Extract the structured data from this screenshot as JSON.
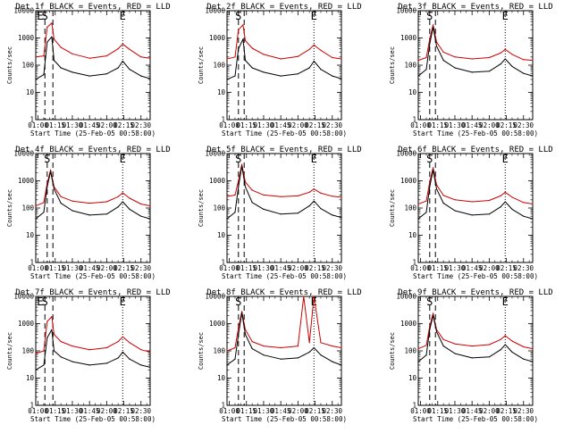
{
  "figure": {
    "x_ticks": [
      "01:00",
      "01:15",
      "01:30",
      "01:45",
      "02:00",
      "02:15",
      "02:30"
    ],
    "x_label": "Start Time (25-Feb-05 00:58:00)",
    "y_label": "Counts/sec",
    "y_ticks": [
      "1",
      "10",
      "100",
      "1000",
      "10000"
    ]
  },
  "chart_data": [
    {
      "type": "line",
      "title": "Det_1f BLACK = Events, RED = LLD",
      "detector": "1f",
      "marker_labels": [
        "E",
        "S",
        "E"
      ],
      "xlim": [
        "00:58",
        "02:38"
      ],
      "ylim": [
        1,
        10000
      ],
      "log_y": true,
      "x": [
        "00:58",
        "01:05",
        "01:08",
        "01:12",
        "01:14",
        "01:20",
        "01:30",
        "01:45",
        "02:00",
        "02:10",
        "02:14",
        "02:20",
        "02:30",
        "02:38"
      ],
      "series": [
        {
          "name": "Events",
          "color": "#000000",
          "values": [
            30,
            45,
            700,
            1100,
            150,
            80,
            55,
            40,
            48,
            80,
            140,
            70,
            40,
            32
          ]
        },
        {
          "name": "LLD",
          "color": "#cc0000",
          "values": [
            200,
            220,
            2500,
            3500,
            900,
            450,
            260,
            180,
            220,
            400,
            600,
            380,
            200,
            180
          ]
        }
      ],
      "dashed_markers": [
        "01:06",
        "01:13"
      ],
      "dotted_markers": [
        "02:14"
      ]
    },
    {
      "type": "line",
      "title": "Det_2f BLACK = Events, RED = LLD",
      "detector": "2f",
      "marker_labels": [
        "S",
        "E"
      ],
      "xlim": [
        "00:58",
        "02:38"
      ],
      "ylim": [
        1,
        10000
      ],
      "log_y": true,
      "x": [
        "00:58",
        "01:05",
        "01:08",
        "01:12",
        "01:14",
        "01:20",
        "01:30",
        "01:45",
        "02:00",
        "02:10",
        "02:14",
        "02:20",
        "02:30",
        "02:38"
      ],
      "series": [
        {
          "name": "Events",
          "color": "#000000",
          "values": [
            30,
            40,
            400,
            900,
            150,
            80,
            55,
            40,
            48,
            80,
            140,
            70,
            40,
            32
          ]
        },
        {
          "name": "LLD",
          "color": "#cc0000",
          "values": [
            170,
            200,
            2000,
            3000,
            800,
            420,
            250,
            170,
            210,
            380,
            550,
            350,
            190,
            170
          ]
        }
      ],
      "dashed_markers": [
        "01:08",
        "01:13"
      ],
      "dotted_markers": [
        "02:14"
      ]
    },
    {
      "type": "line",
      "title": "Det_3f BLACK = Events, RED = LLD",
      "detector": "3f",
      "marker_labels": [
        "S",
        "E"
      ],
      "xlim": [
        "00:58",
        "02:38"
      ],
      "ylim": [
        1,
        10000
      ],
      "log_y": true,
      "x": [
        "00:58",
        "01:05",
        "01:08",
        "01:11",
        "01:14",
        "01:20",
        "01:30",
        "01:45",
        "02:00",
        "02:10",
        "02:14",
        "02:20",
        "02:30",
        "02:38"
      ],
      "series": [
        {
          "name": "Events",
          "color": "#000000",
          "values": [
            40,
            70,
            600,
            2500,
            500,
            150,
            80,
            55,
            60,
            110,
            170,
            90,
            50,
            40
          ]
        },
        {
          "name": "LLD",
          "color": "#cc0000",
          "values": [
            150,
            190,
            900,
            3000,
            700,
            300,
            200,
            170,
            190,
            280,
            380,
            250,
            160,
            150
          ]
        }
      ],
      "dashed_markers": [
        "01:08",
        "01:13"
      ],
      "dotted_markers": [
        "02:14"
      ]
    },
    {
      "type": "line",
      "title": "Det_4f BLACK = Events, RED = LLD",
      "detector": "4f",
      "marker_labels": [
        "S",
        "E"
      ],
      "xlim": [
        "00:58",
        "02:38"
      ],
      "ylim": [
        1,
        10000
      ],
      "log_y": true,
      "x": [
        "00:58",
        "01:05",
        "01:08",
        "01:11",
        "01:14",
        "01:20",
        "01:30",
        "01:45",
        "02:00",
        "02:10",
        "02:14",
        "02:20",
        "02:30",
        "02:38"
      ],
      "series": [
        {
          "name": "Events",
          "color": "#000000",
          "values": [
            40,
            70,
            600,
            2200,
            500,
            150,
            80,
            55,
            60,
            110,
            170,
            90,
            50,
            40
          ]
        },
        {
          "name": "LLD",
          "color": "#cc0000",
          "values": [
            120,
            160,
            800,
            2500,
            600,
            260,
            180,
            150,
            170,
            260,
            360,
            230,
            140,
            120
          ]
        }
      ],
      "dashed_markers": [
        "01:08",
        "01:13"
      ],
      "dotted_markers": [
        "02:14"
      ]
    },
    {
      "type": "line",
      "title": "Det_5f BLACK = Events, RED = LLD",
      "detector": "5f",
      "marker_labels": [
        "S",
        "E"
      ],
      "xlim": [
        "00:58",
        "02:38"
      ],
      "ylim": [
        1,
        10000
      ],
      "log_y": true,
      "x": [
        "00:58",
        "01:05",
        "01:08",
        "01:11",
        "01:14",
        "01:20",
        "01:30",
        "01:45",
        "02:00",
        "02:10",
        "02:14",
        "02:20",
        "02:30",
        "02:38"
      ],
      "series": [
        {
          "name": "Events",
          "color": "#000000",
          "values": [
            40,
            70,
            600,
            3500,
            600,
            160,
            90,
            60,
            65,
            120,
            180,
            95,
            55,
            45
          ]
        },
        {
          "name": "LLD",
          "color": "#cc0000",
          "values": [
            260,
            300,
            1000,
            4000,
            900,
            450,
            300,
            260,
            280,
            380,
            500,
            350,
            270,
            250
          ]
        }
      ],
      "dashed_markers": [
        "01:08",
        "01:13"
      ],
      "dotted_markers": [
        "02:14"
      ]
    },
    {
      "type": "line",
      "title": "Det_6f BLACK = Events, RED = LLD",
      "detector": "6f",
      "marker_labels": [
        "S",
        "E"
      ],
      "xlim": [
        "00:58",
        "02:38"
      ],
      "ylim": [
        1,
        10000
      ],
      "log_y": true,
      "x": [
        "00:58",
        "01:05",
        "01:08",
        "01:11",
        "01:14",
        "01:20",
        "01:30",
        "01:45",
        "02:00",
        "02:10",
        "02:14",
        "02:20",
        "02:30",
        "02:38"
      ],
      "series": [
        {
          "name": "Events",
          "color": "#000000",
          "values": [
            40,
            70,
            600,
            2500,
            500,
            150,
            80,
            55,
            60,
            110,
            170,
            90,
            50,
            40
          ]
        },
        {
          "name": "LLD",
          "color": "#cc0000",
          "values": [
            140,
            180,
            900,
            3000,
            700,
            290,
            200,
            170,
            190,
            280,
            380,
            250,
            160,
            140
          ]
        }
      ],
      "dashed_markers": [
        "01:08",
        "01:13"
      ],
      "dotted_markers": [
        "02:14"
      ]
    },
    {
      "type": "line",
      "title": "Det_7f BLACK = Events, RED = LLD",
      "detector": "7f",
      "marker_labels": [
        "E",
        "S",
        "E"
      ],
      "xlim": [
        "00:58",
        "02:38"
      ],
      "ylim": [
        1,
        10000
      ],
      "log_y": true,
      "x": [
        "00:58",
        "01:05",
        "01:08",
        "01:12",
        "01:14",
        "01:20",
        "01:30",
        "01:45",
        "02:00",
        "02:10",
        "02:14",
        "02:20",
        "02:30",
        "02:38"
      ],
      "series": [
        {
          "name": "Events",
          "color": "#000000",
          "values": [
            20,
            30,
            300,
            600,
            100,
            60,
            40,
            30,
            35,
            55,
            90,
            50,
            30,
            25
          ]
        },
        {
          "name": "LLD",
          "color": "#cc0000",
          "values": [
            80,
            100,
            1200,
            1800,
            400,
            220,
            150,
            110,
            130,
            220,
            330,
            200,
            110,
            90
          ]
        }
      ],
      "dashed_markers": [
        "01:06",
        "01:13"
      ],
      "dotted_markers": [
        "02:14"
      ]
    },
    {
      "type": "line",
      "title": "Det_8f BLACK = Events, RED = LLD",
      "detector": "8f",
      "marker_labels": [
        "S",
        "E"
      ],
      "xlim": [
        "00:58",
        "02:38"
      ],
      "ylim": [
        1,
        10000
      ],
      "log_y": true,
      "x": [
        "00:58",
        "01:05",
        "01:08",
        "01:11",
        "01:14",
        "01:20",
        "01:30",
        "01:45",
        "02:00",
        "02:05",
        "02:10",
        "02:14",
        "02:20",
        "02:30",
        "02:38"
      ],
      "series": [
        {
          "name": "Events",
          "color": "#000000",
          "values": [
            30,
            50,
            400,
            2500,
            400,
            120,
            70,
            50,
            55,
            70,
            90,
            130,
            70,
            40,
            30
          ]
        },
        {
          "name": "LLD",
          "color": "#cc0000",
          "values": [
            100,
            130,
            700,
            2800,
            600,
            220,
            150,
            130,
            150,
            10000,
            200,
            10000,
            200,
            150,
            130
          ]
        }
      ],
      "dashed_markers": [
        "01:08",
        "01:13"
      ],
      "dotted_markers": [
        "02:14"
      ]
    },
    {
      "type": "line",
      "title": "Det_9f BLACK = Events, RED = LLD",
      "detector": "9f",
      "marker_labels": [
        "S",
        "E"
      ],
      "xlim": [
        "00:58",
        "02:38"
      ],
      "ylim": [
        1,
        10000
      ],
      "log_y": true,
      "x": [
        "00:58",
        "01:05",
        "01:08",
        "01:11",
        "01:14",
        "01:20",
        "01:30",
        "01:45",
        "02:00",
        "02:10",
        "02:14",
        "02:20",
        "02:30",
        "02:38"
      ],
      "series": [
        {
          "name": "Events",
          "color": "#000000",
          "values": [
            40,
            70,
            600,
            2000,
            500,
            150,
            80,
            55,
            60,
            110,
            170,
            90,
            50,
            40
          ]
        },
        {
          "name": "LLD",
          "color": "#cc0000",
          "values": [
            120,
            160,
            800,
            2400,
            600,
            260,
            180,
            150,
            170,
            260,
            360,
            230,
            140,
            120
          ]
        }
      ],
      "dashed_markers": [
        "01:08",
        "01:13"
      ],
      "dotted_markers": [
        "02:14"
      ]
    }
  ]
}
